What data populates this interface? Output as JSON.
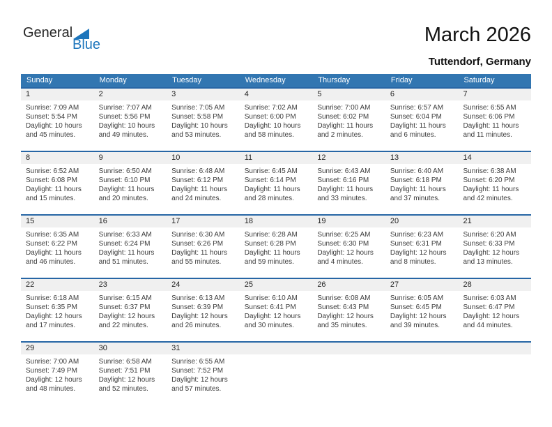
{
  "logo": {
    "part1": "General",
    "part2": "Blue"
  },
  "header": {
    "title": "March 2026",
    "subtitle": "Tuttendorf, Germany"
  },
  "colors": {
    "header_bar_blue": "#3276B1",
    "row_border_blue": "#2766A5",
    "number_band_gray": "#F0F0F0",
    "logo_blue": "#1C75BC"
  },
  "calendar": {
    "day_headers": [
      "Sunday",
      "Monday",
      "Tuesday",
      "Wednesday",
      "Thursday",
      "Friday",
      "Saturday"
    ],
    "weeks": [
      [
        {
          "day": "1",
          "lines": [
            "Sunrise: 7:09 AM",
            "Sunset: 5:54 PM",
            "Daylight: 10 hours",
            "and 45 minutes."
          ]
        },
        {
          "day": "2",
          "lines": [
            "Sunrise: 7:07 AM",
            "Sunset: 5:56 PM",
            "Daylight: 10 hours",
            "and 49 minutes."
          ]
        },
        {
          "day": "3",
          "lines": [
            "Sunrise: 7:05 AM",
            "Sunset: 5:58 PM",
            "Daylight: 10 hours",
            "and 53 minutes."
          ]
        },
        {
          "day": "4",
          "lines": [
            "Sunrise: 7:02 AM",
            "Sunset: 6:00 PM",
            "Daylight: 10 hours",
            "and 58 minutes."
          ]
        },
        {
          "day": "5",
          "lines": [
            "Sunrise: 7:00 AM",
            "Sunset: 6:02 PM",
            "Daylight: 11 hours",
            "and 2 minutes."
          ]
        },
        {
          "day": "6",
          "lines": [
            "Sunrise: 6:57 AM",
            "Sunset: 6:04 PM",
            "Daylight: 11 hours",
            "and 6 minutes."
          ]
        },
        {
          "day": "7",
          "lines": [
            "Sunrise: 6:55 AM",
            "Sunset: 6:06 PM",
            "Daylight: 11 hours",
            "and 11 minutes."
          ]
        }
      ],
      [
        {
          "day": "8",
          "lines": [
            "Sunrise: 6:52 AM",
            "Sunset: 6:08 PM",
            "Daylight: 11 hours",
            "and 15 minutes."
          ]
        },
        {
          "day": "9",
          "lines": [
            "Sunrise: 6:50 AM",
            "Sunset: 6:10 PM",
            "Daylight: 11 hours",
            "and 20 minutes."
          ]
        },
        {
          "day": "10",
          "lines": [
            "Sunrise: 6:48 AM",
            "Sunset: 6:12 PM",
            "Daylight: 11 hours",
            "and 24 minutes."
          ]
        },
        {
          "day": "11",
          "lines": [
            "Sunrise: 6:45 AM",
            "Sunset: 6:14 PM",
            "Daylight: 11 hours",
            "and 28 minutes."
          ]
        },
        {
          "day": "12",
          "lines": [
            "Sunrise: 6:43 AM",
            "Sunset: 6:16 PM",
            "Daylight: 11 hours",
            "and 33 minutes."
          ]
        },
        {
          "day": "13",
          "lines": [
            "Sunrise: 6:40 AM",
            "Sunset: 6:18 PM",
            "Daylight: 11 hours",
            "and 37 minutes."
          ]
        },
        {
          "day": "14",
          "lines": [
            "Sunrise: 6:38 AM",
            "Sunset: 6:20 PM",
            "Daylight: 11 hours",
            "and 42 minutes."
          ]
        }
      ],
      [
        {
          "day": "15",
          "lines": [
            "Sunrise: 6:35 AM",
            "Sunset: 6:22 PM",
            "Daylight: 11 hours",
            "and 46 minutes."
          ]
        },
        {
          "day": "16",
          "lines": [
            "Sunrise: 6:33 AM",
            "Sunset: 6:24 PM",
            "Daylight: 11 hours",
            "and 51 minutes."
          ]
        },
        {
          "day": "17",
          "lines": [
            "Sunrise: 6:30 AM",
            "Sunset: 6:26 PM",
            "Daylight: 11 hours",
            "and 55 minutes."
          ]
        },
        {
          "day": "18",
          "lines": [
            "Sunrise: 6:28 AM",
            "Sunset: 6:28 PM",
            "Daylight: 11 hours",
            "and 59 minutes."
          ]
        },
        {
          "day": "19",
          "lines": [
            "Sunrise: 6:25 AM",
            "Sunset: 6:30 PM",
            "Daylight: 12 hours",
            "and 4 minutes."
          ]
        },
        {
          "day": "20",
          "lines": [
            "Sunrise: 6:23 AM",
            "Sunset: 6:31 PM",
            "Daylight: 12 hours",
            "and 8 minutes."
          ]
        },
        {
          "day": "21",
          "lines": [
            "Sunrise: 6:20 AM",
            "Sunset: 6:33 PM",
            "Daylight: 12 hours",
            "and 13 minutes."
          ]
        }
      ],
      [
        {
          "day": "22",
          "lines": [
            "Sunrise: 6:18 AM",
            "Sunset: 6:35 PM",
            "Daylight: 12 hours",
            "and 17 minutes."
          ]
        },
        {
          "day": "23",
          "lines": [
            "Sunrise: 6:15 AM",
            "Sunset: 6:37 PM",
            "Daylight: 12 hours",
            "and 22 minutes."
          ]
        },
        {
          "day": "24",
          "lines": [
            "Sunrise: 6:13 AM",
            "Sunset: 6:39 PM",
            "Daylight: 12 hours",
            "and 26 minutes."
          ]
        },
        {
          "day": "25",
          "lines": [
            "Sunrise: 6:10 AM",
            "Sunset: 6:41 PM",
            "Daylight: 12 hours",
            "and 30 minutes."
          ]
        },
        {
          "day": "26",
          "lines": [
            "Sunrise: 6:08 AM",
            "Sunset: 6:43 PM",
            "Daylight: 12 hours",
            "and 35 minutes."
          ]
        },
        {
          "day": "27",
          "lines": [
            "Sunrise: 6:05 AM",
            "Sunset: 6:45 PM",
            "Daylight: 12 hours",
            "and 39 minutes."
          ]
        },
        {
          "day": "28",
          "lines": [
            "Sunrise: 6:03 AM",
            "Sunset: 6:47 PM",
            "Daylight: 12 hours",
            "and 44 minutes."
          ]
        }
      ],
      [
        {
          "day": "29",
          "lines": [
            "Sunrise: 7:00 AM",
            "Sunset: 7:49 PM",
            "Daylight: 12 hours",
            "and 48 minutes."
          ]
        },
        {
          "day": "30",
          "lines": [
            "Sunrise: 6:58 AM",
            "Sunset: 7:51 PM",
            "Daylight: 12 hours",
            "and 52 minutes."
          ]
        },
        {
          "day": "31",
          "lines": [
            "Sunrise: 6:55 AM",
            "Sunset: 7:52 PM",
            "Daylight: 12 hours",
            "and 57 minutes."
          ]
        },
        null,
        null,
        null,
        null
      ]
    ]
  }
}
